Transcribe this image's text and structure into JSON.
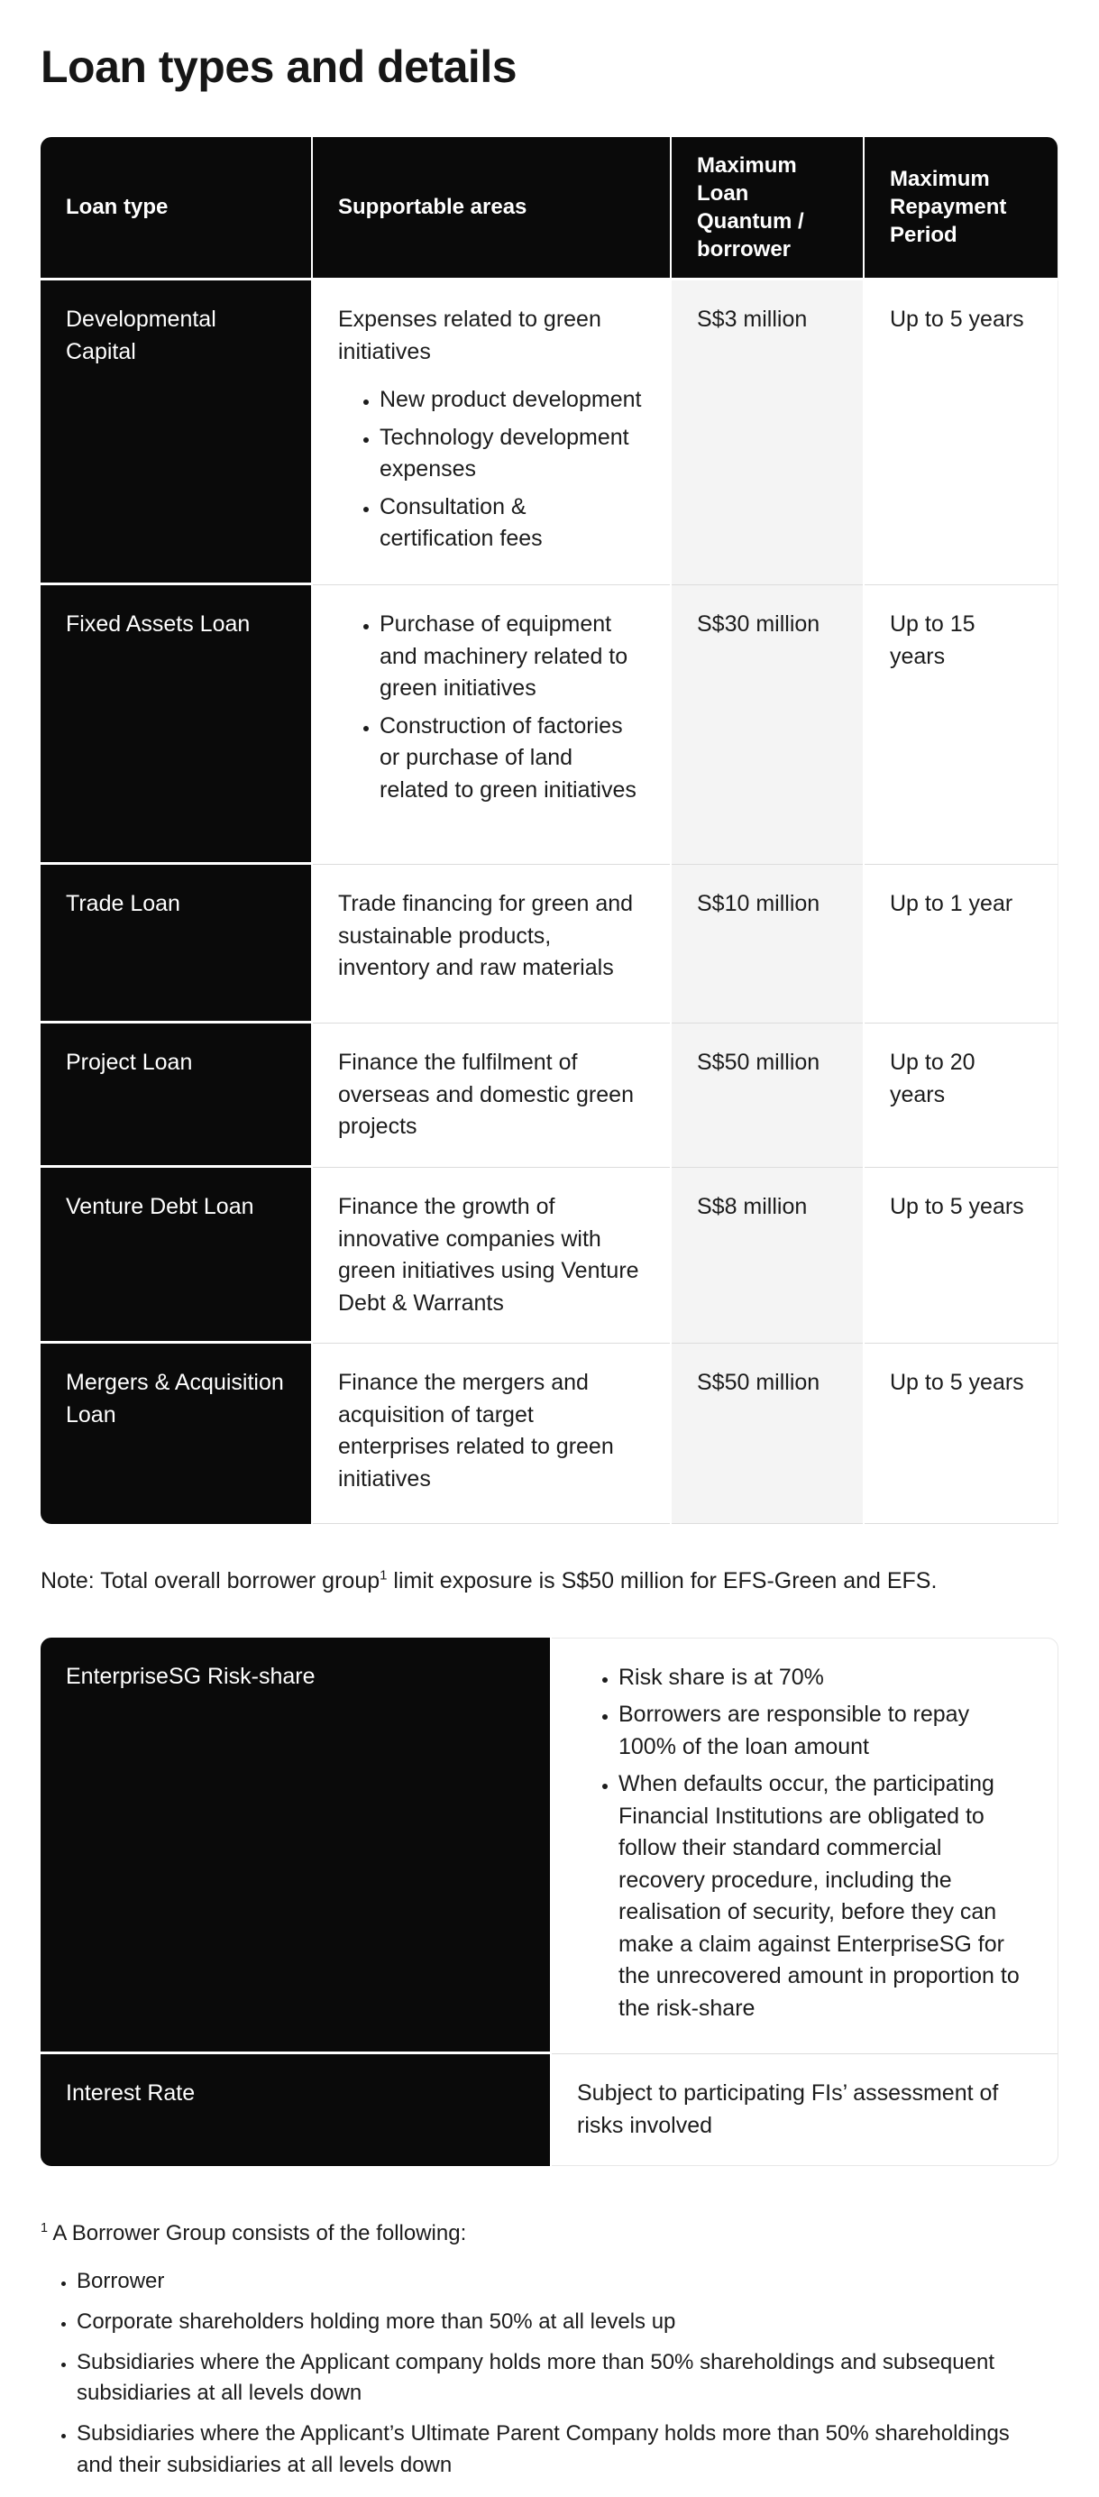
{
  "page": {
    "title": "Loan types and details",
    "accent_black": "#0a0a0a",
    "quantum_column_bg": "#f4f4f4",
    "separator_color": "#dcdcdc"
  },
  "loan_table": {
    "headers": [
      "Loan type",
      "Supportable areas",
      "Maximum Loan Quantum / borrower",
      "Maximum Repayment Period"
    ],
    "rows": [
      {
        "loan_type": "Developmental Capital",
        "intro": "Expenses related to green initiatives",
        "bullets": [
          "New product development",
          "Technology development expenses",
          "Consultation & certification fees"
        ],
        "max_quantum": "S$3 million",
        "max_period": "Up to 5 years"
      },
      {
        "loan_type": "Fixed Assets Loan",
        "intro": "",
        "bullets": [
          "Purchase of equipment and machinery related to green initiatives",
          "Construction of factories or purchase of land related to green initiatives"
        ],
        "max_quantum": "S$30 million",
        "max_period": "Up to 15 years"
      },
      {
        "loan_type": "Trade Loan",
        "intro": "Trade financing for green and sustainable products, inventory and raw materials",
        "bullets": [],
        "max_quantum": "S$10 million",
        "max_period": "Up to 1 year"
      },
      {
        "loan_type": "Project Loan",
        "intro": "Finance the fulfilment of overseas and domestic green projects",
        "bullets": [],
        "max_quantum": "S$50 million",
        "max_period": "Up to 20 years"
      },
      {
        "loan_type": "Venture Debt Loan",
        "intro": "Finance the growth of innovative companies with green initiatives using Venture Debt & Warrants",
        "bullets": [],
        "max_quantum": "S$8 million",
        "max_period": "Up to 5 years"
      },
      {
        "loan_type": "Mergers & Acquisition Loan",
        "intro": "Finance the mergers and acquisition of target enterprises related to green initiatives",
        "bullets": [],
        "max_quantum": "S$50 million",
        "max_period": "Up to 5 years"
      }
    ]
  },
  "note": {
    "prefix": "Note: Total overall borrower group",
    "sup": "1",
    "suffix": " limit exposure is S$50 million for EFS-Green and EFS."
  },
  "details_table": {
    "rows": [
      {
        "label": "EnterpriseSG Risk-share",
        "bullets": [
          "Risk share is at 70%",
          "Borrowers are responsible to repay 100% of the loan amount",
          "When defaults occur, the participating Financial Institutions are obligated to follow their standard commercial recovery procedure, including the realisation of security, before they can make a claim against EnterpriseSG for the unrecovered amount in proportion to the risk-share"
        ],
        "text": ""
      },
      {
        "label": "Interest Rate",
        "bullets": [],
        "text": "Subject to participating FIs’ assessment of risks involved"
      }
    ]
  },
  "footnote": {
    "sup": "1",
    "intro": " A Borrower Group consists of the following:",
    "bullets": [
      "Borrower",
      "Corporate shareholders holding more than 50% at all levels up",
      "Subsidiaries where the Applicant company holds more than 50% shareholdings and subsequent subsidiaries at all levels down",
      "Subsidiaries where the Applicant’s Ultimate Parent Company holds more than 50% shareholdings and their subsidiaries at all levels down"
    ]
  }
}
